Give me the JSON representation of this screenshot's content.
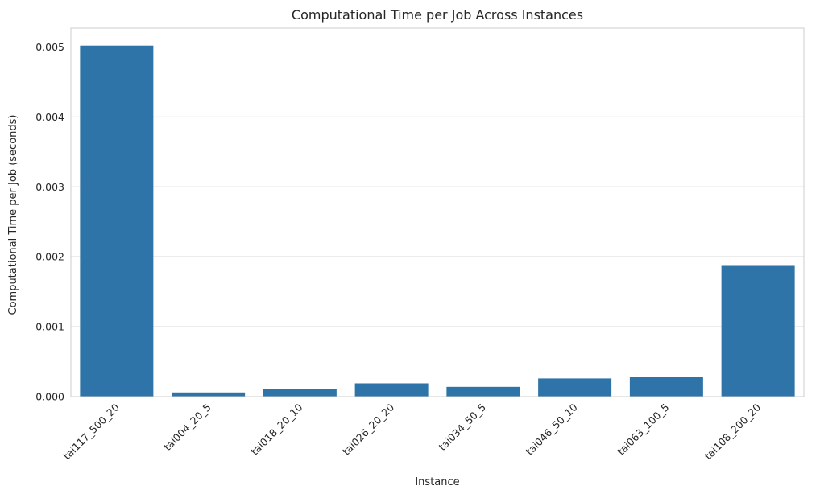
{
  "chart_data": {
    "type": "bar",
    "title": "Computational Time per Job Across Instances",
    "xlabel": "Instance",
    "ylabel": "Computational Time per Job (seconds)",
    "categories": [
      "tai117_500_20",
      "tai004_20_5",
      "tai018_20_10",
      "tai026_20_20",
      "tai034_50_5",
      "tai046_50_10",
      "tai063_100_5",
      "tai108_200_20"
    ],
    "values": [
      0.00502,
      6e-05,
      0.00011,
      0.00019,
      0.00014,
      0.00026,
      0.00028,
      0.00187
    ],
    "yticks": [
      0.0,
      0.001,
      0.002,
      0.003,
      0.004,
      0.005
    ],
    "ytick_labels": [
      "0.000",
      "0.001",
      "0.002",
      "0.003",
      "0.004",
      "0.005"
    ],
    "ylim": [
      0,
      0.00527
    ],
    "grid": "horizontal",
    "colors": {
      "bar": "#2f74a8",
      "grid": "#cccccc",
      "spine": "#cccccc",
      "text": "#262626"
    }
  }
}
